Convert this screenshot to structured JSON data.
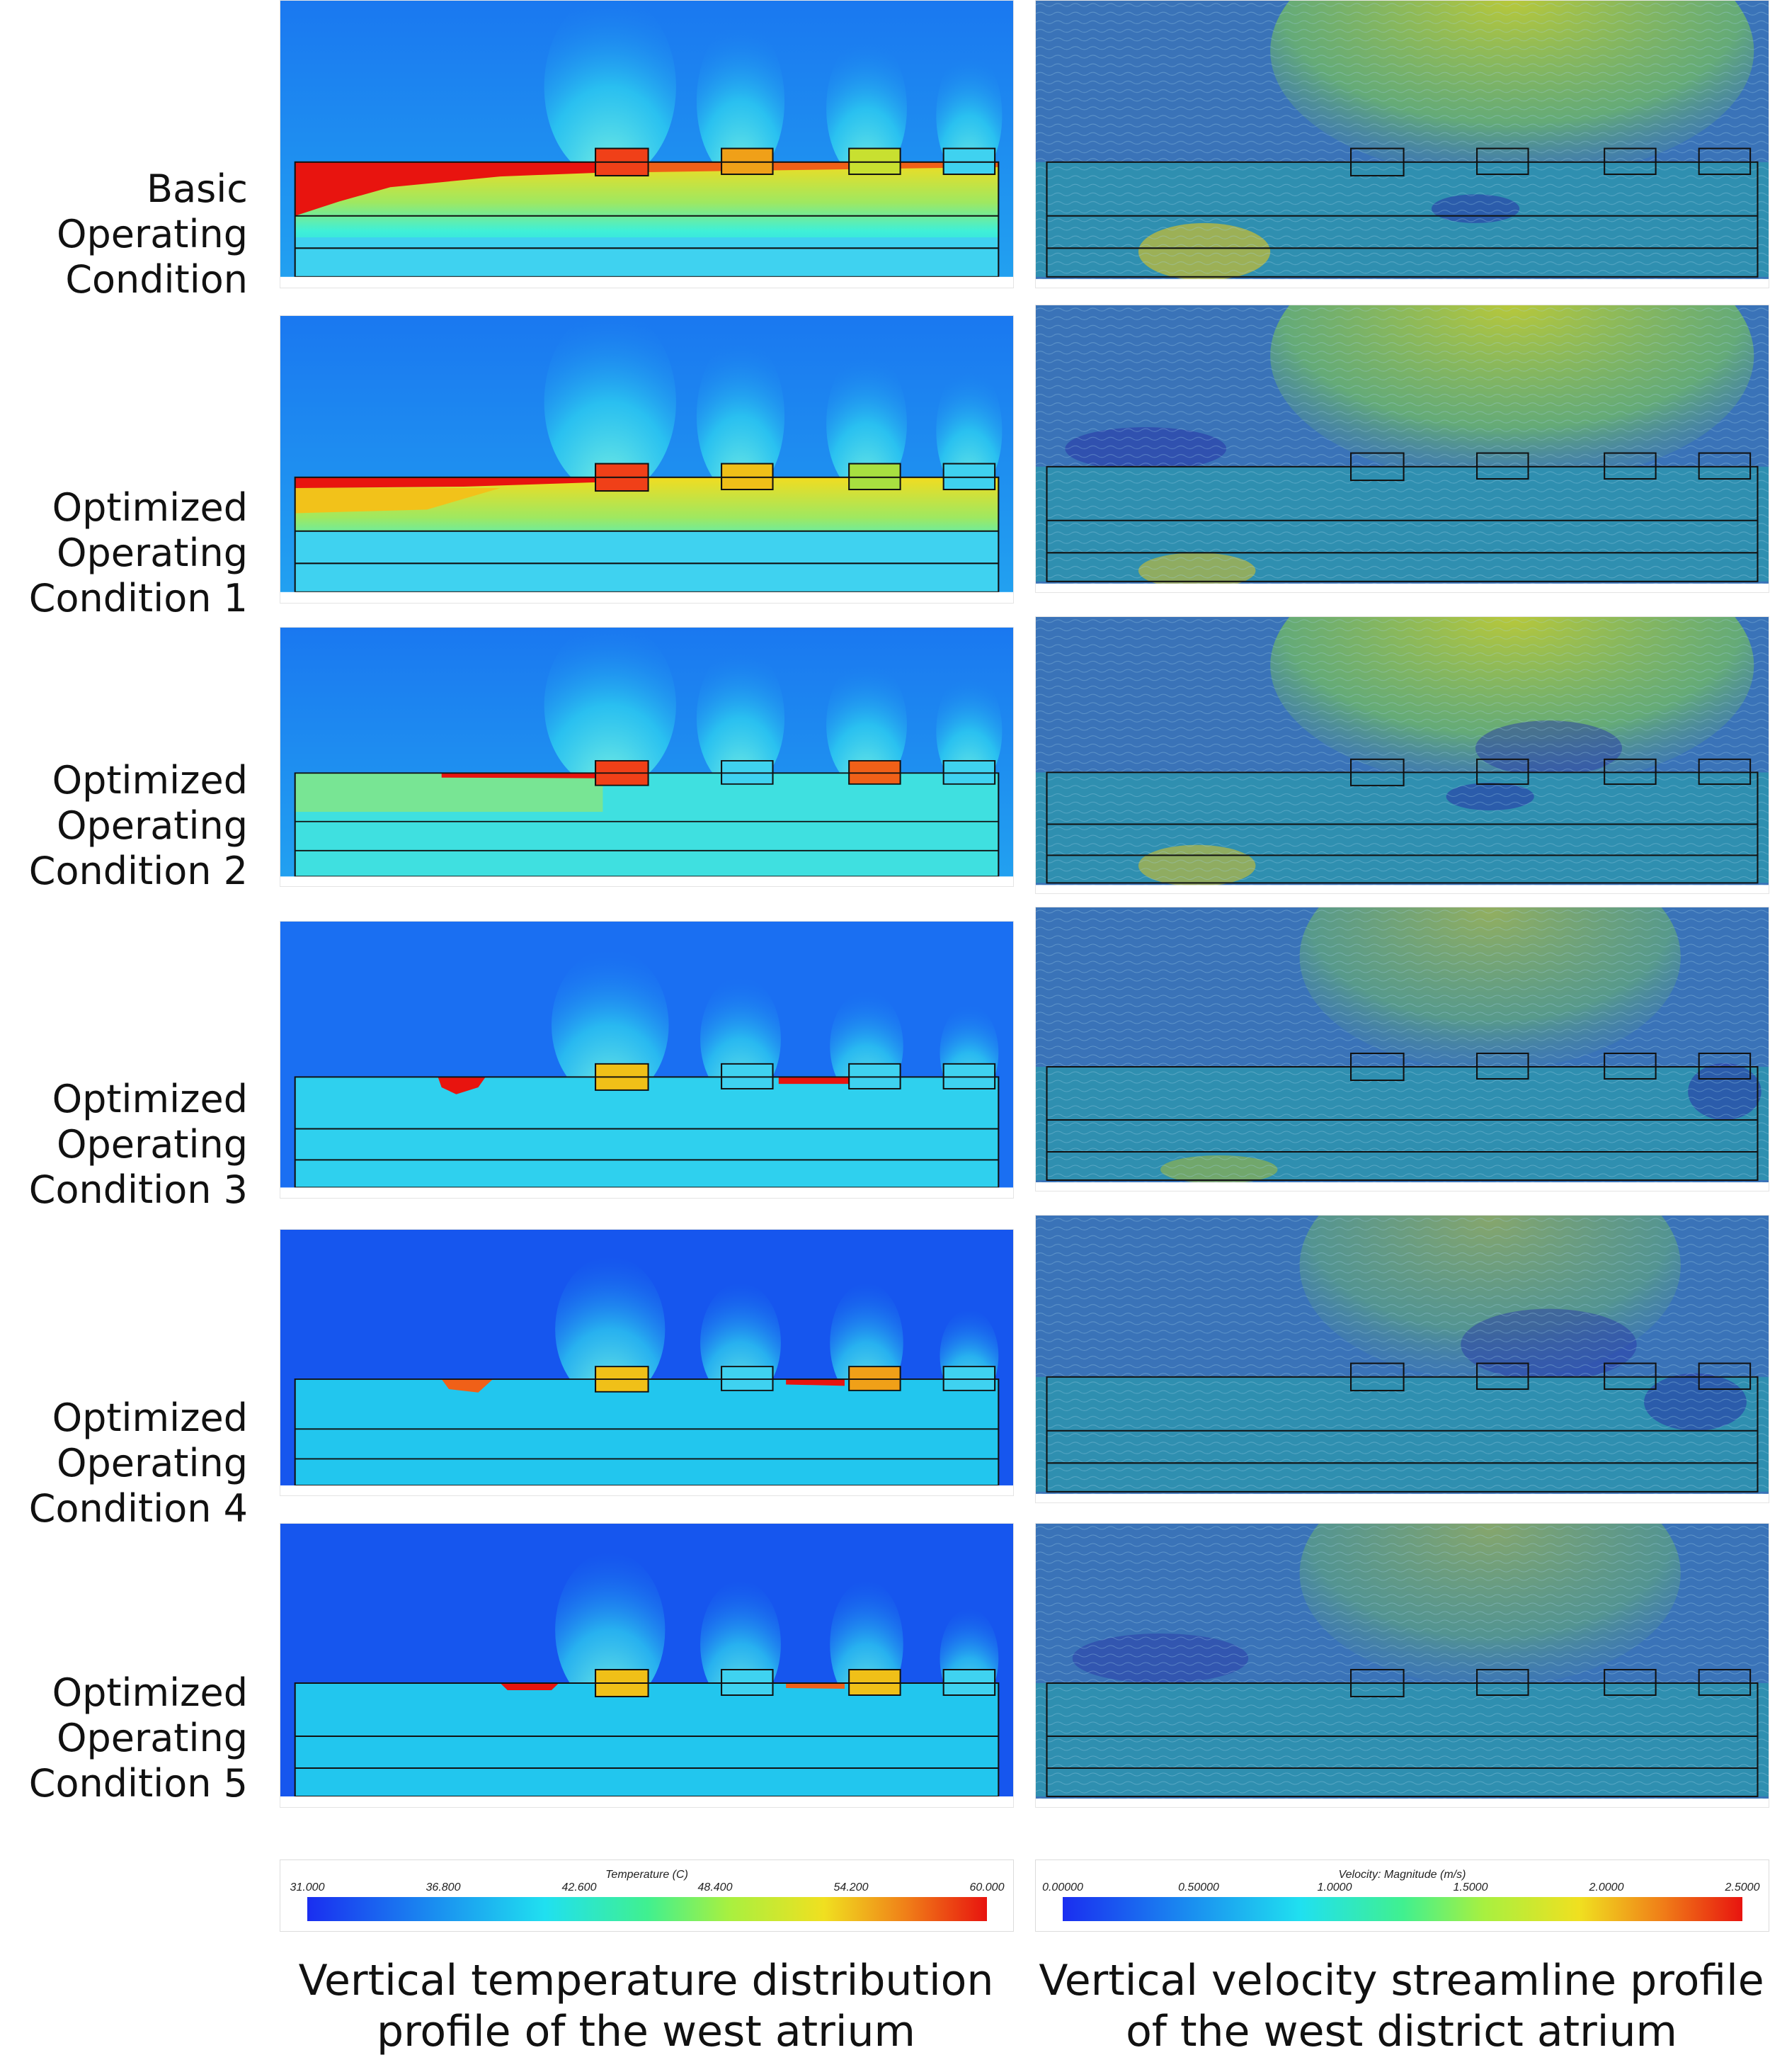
{
  "row_labels": [
    [
      "Basic",
      "Operating",
      "Condition"
    ],
    [
      "Optimized",
      "Operating",
      "Condition 1"
    ],
    [
      "Optimized",
      "Operating",
      "Condition 2"
    ],
    [
      "Optimized",
      "Operating",
      "Condition 3"
    ],
    [
      "Optimized",
      "Operating",
      "Condition 4"
    ],
    [
      "Optimized",
      "Operating",
      "Condition 5"
    ]
  ],
  "temperature_legend": {
    "title": "Temperature (C)",
    "ticks": [
      "31.000",
      "36.800",
      "42.600",
      "48.400",
      "54.200",
      "60.000"
    ]
  },
  "velocity_legend": {
    "title": "Velocity: Magnitude (m/s)",
    "ticks": [
      "0.00000",
      "0.50000",
      "1.0000",
      "1.5000",
      "2.0000",
      "2.5000"
    ]
  },
  "captions": {
    "left": [
      "Vertical temperature distribution",
      "profile of the west atrium"
    ],
    "right": [
      "Vertical velocity streamline profile",
      "of the west district atrium"
    ]
  },
  "colors": {
    "temp_background": "#1a6ff2",
    "velocity_background": "#3a73b8",
    "hot": "#e8140f",
    "warm": "#f2c21a",
    "mid": "#2fe6e0"
  }
}
